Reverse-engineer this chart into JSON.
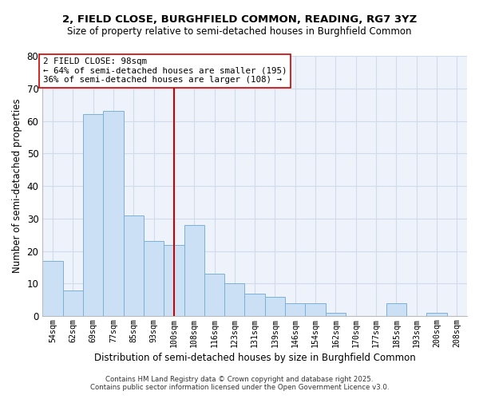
{
  "title": "2, FIELD CLOSE, BURGHFIELD COMMON, READING, RG7 3YZ",
  "subtitle": "Size of property relative to semi-detached houses in Burghfield Common",
  "xlabel": "Distribution of semi-detached houses by size in Burghfield Common",
  "ylabel": "Number of semi-detached properties",
  "categories": [
    "54sqm",
    "62sqm",
    "69sqm",
    "77sqm",
    "85sqm",
    "93sqm",
    "100sqm",
    "108sqm",
    "116sqm",
    "123sqm",
    "131sqm",
    "139sqm",
    "146sqm",
    "154sqm",
    "162sqm",
    "170sqm",
    "177sqm",
    "185sqm",
    "193sqm",
    "200sqm",
    "208sqm"
  ],
  "values": [
    17,
    8,
    62,
    63,
    31,
    23,
    22,
    28,
    13,
    10,
    7,
    6,
    4,
    4,
    1,
    0,
    0,
    4,
    0,
    1,
    0
  ],
  "bar_color": "#cce0f5",
  "bar_edge_color": "#7ab0d8",
  "grid_color": "#d0dcea",
  "background_color": "#eef2fb",
  "fig_background": "#ffffff",
  "vline_x_index": 6,
  "vline_color": "#cc0000",
  "annotation_title": "2 FIELD CLOSE: 98sqm",
  "annotation_line1": "← 64% of semi-detached houses are smaller (195)",
  "annotation_line2": "36% of semi-detached houses are larger (108) →",
  "annotation_box_edge": "#cc0000",
  "ylim": [
    0,
    80
  ],
  "yticks": [
    0,
    10,
    20,
    30,
    40,
    50,
    60,
    70,
    80
  ],
  "footnote1": "Contains HM Land Registry data © Crown copyright and database right 2025.",
  "footnote2": "Contains public sector information licensed under the Open Government Licence v3.0."
}
